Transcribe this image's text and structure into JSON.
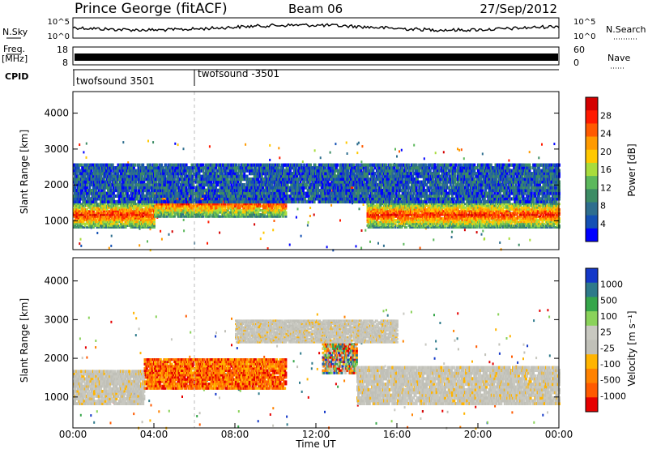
{
  "header": {
    "title": "Prince George (fitACF)",
    "beam": "Beam 06",
    "date": "27/Sep/2012"
  },
  "nsky_panel": {
    "left_label": "N.Sky",
    "right_label": "N.Search",
    "left_ticks": [
      "10^5",
      "10^0"
    ],
    "right_ticks": [
      "10^5",
      "10^0"
    ]
  },
  "freq_panel": {
    "left_label_1": "Freq.",
    "left_label_2": "[MHz]",
    "right_label": "Nave",
    "left_ticks": [
      "18",
      "8"
    ],
    "right_ticks": [
      "60",
      "0"
    ]
  },
  "cpid": {
    "label": "CPID",
    "programs": [
      {
        "name": "twofsound 3501",
        "start_hour": 0
      },
      {
        "name": "twofsound -3501",
        "start_hour": 6
      }
    ]
  },
  "chart_data": [
    {
      "type": "heatmap",
      "panel": "power",
      "ylabel": "Slant Range [km]",
      "xlabel": "",
      "colorbar_label": "Power [dB]",
      "colorbar_ticks": [
        "28",
        "24",
        "20",
        "16",
        "12",
        "8",
        "4"
      ],
      "colorbar_colors": [
        "#d40000",
        "#ff1a00",
        "#ff5a00",
        "#ff9a00",
        "#ffc800",
        "#a8dc3c",
        "#5cb85c",
        "#3c8c64",
        "#2e6e8e",
        "#1450b4",
        "#0000ff"
      ],
      "xlim": [
        0,
        24
      ],
      "ylim": [
        200,
        4600
      ],
      "yticks": [
        "4000",
        "3000",
        "2000",
        "1000"
      ],
      "grid": false,
      "echo_bands": [
        {
          "t0": 0,
          "t1": 4,
          "r0": 800,
          "r1": 1500,
          "level": "high"
        },
        {
          "t0": 4,
          "t1": 10.5,
          "r0": 1100,
          "r1": 1900,
          "level": "high"
        },
        {
          "t0": 12.3,
          "t1": 14,
          "r0": 1500,
          "r1": 2300,
          "level": "high"
        },
        {
          "t0": 14.5,
          "t1": 24,
          "r0": 800,
          "r1": 1500,
          "level": "high"
        },
        {
          "t0": 0,
          "t1": 24,
          "r0": 1500,
          "r1": 2600,
          "level": "low"
        }
      ]
    },
    {
      "type": "heatmap",
      "panel": "velocity",
      "ylabel": "Slant Range [km]",
      "xlabel": "Time UT",
      "colorbar_label": "Velocity [m s⁻¹]",
      "colorbar_ticks": [
        "1000",
        "500",
        "100",
        "25",
        "-25",
        "-100",
        "-500",
        "-1000"
      ],
      "colorbar_colors": [
        "#1438c8",
        "#2e7a8a",
        "#36a64a",
        "#8ad25a",
        "#c8c8c0",
        "#c0c0b8",
        "#ffb400",
        "#ff8200",
        "#ff5a00",
        "#e60000"
      ],
      "xlim": [
        0,
        24
      ],
      "ylim": [
        200,
        4600
      ],
      "yticks": [
        "4000",
        "3000",
        "2000",
        "1000"
      ],
      "xticks": [
        "00:00",
        "04:00",
        "08:00",
        "12:00",
        "16:00",
        "20:00",
        "00:00"
      ],
      "grid": false,
      "echo_bands": [
        {
          "t0": 0,
          "t1": 3.5,
          "r0": 800,
          "r1": 1700,
          "level": "ground"
        },
        {
          "t0": 3.5,
          "t1": 10.5,
          "r0": 1200,
          "r1": 2000,
          "level": "negative"
        },
        {
          "t0": 12.3,
          "t1": 14,
          "r0": 1600,
          "r1": 2400,
          "level": "mixed"
        },
        {
          "t0": 14,
          "t1": 24,
          "r0": 800,
          "r1": 1800,
          "level": "ground"
        },
        {
          "t0": 8,
          "t1": 16,
          "r0": 2400,
          "r1": 3000,
          "level": "ground"
        }
      ]
    }
  ]
}
